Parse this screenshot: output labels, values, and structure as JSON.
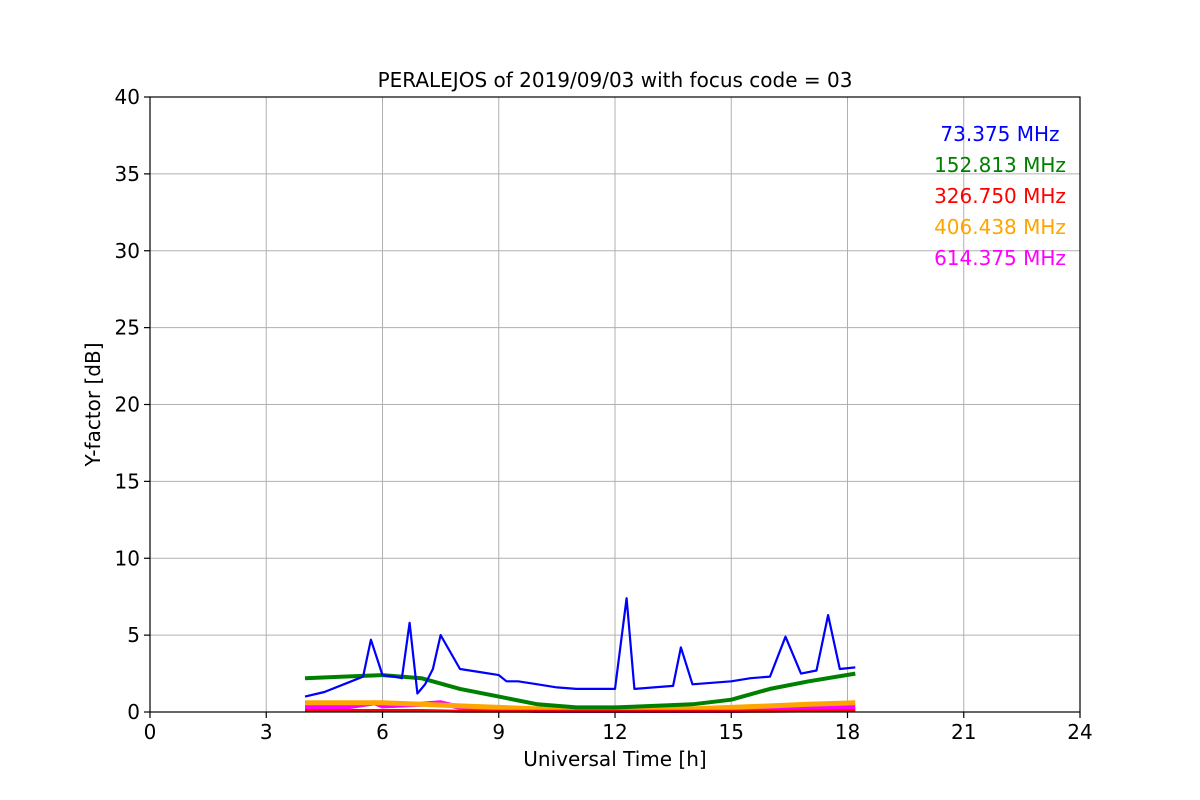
{
  "chart_data": {
    "type": "line",
    "title": "PERALEJOS of 2019/09/03 with focus code = 03",
    "xlabel": "Universal Time [h]",
    "ylabel": "Y-factor [dB]",
    "xlim": [
      0,
      24
    ],
    "ylim": [
      0,
      40
    ],
    "xticks": [
      0,
      3,
      6,
      9,
      12,
      15,
      18,
      21,
      24
    ],
    "yticks": [
      0,
      5,
      10,
      15,
      20,
      25,
      30,
      35,
      40
    ],
    "grid": true,
    "legend_placement": "top-right",
    "series": [
      {
        "name": "73.375 MHz",
        "color": "#0000ff",
        "x": [
          4.0,
          4.5,
          5.0,
          5.3,
          5.5,
          5.7,
          6.0,
          6.3,
          6.5,
          6.7,
          6.9,
          7.1,
          7.3,
          7.5,
          8.0,
          8.5,
          9.0,
          9.2,
          9.5,
          10.0,
          10.5,
          11.0,
          11.5,
          12.0,
          12.3,
          12.5,
          13.0,
          13.5,
          13.7,
          14.0,
          14.5,
          15.0,
          15.5,
          16.0,
          16.4,
          16.8,
          17.2,
          17.5,
          17.8,
          18.2
        ],
        "y": [
          1.0,
          1.3,
          1.8,
          2.1,
          2.3,
          4.7,
          2.4,
          2.3,
          2.2,
          5.8,
          1.2,
          1.8,
          2.8,
          5.0,
          2.8,
          2.6,
          2.4,
          2.0,
          2.0,
          1.8,
          1.6,
          1.5,
          1.5,
          1.5,
          7.4,
          1.5,
          1.6,
          1.7,
          4.2,
          1.8,
          1.9,
          2.0,
          2.2,
          2.3,
          4.9,
          2.5,
          2.7,
          6.3,
          2.8,
          2.9
        ]
      },
      {
        "name": "152.813 MHz",
        "color": "#008000",
        "x": [
          4.0,
          5.0,
          6.0,
          7.0,
          8.0,
          9.0,
          10.0,
          11.0,
          12.0,
          13.0,
          14.0,
          15.0,
          16.0,
          17.0,
          18.2
        ],
        "y": [
          2.2,
          2.3,
          2.4,
          2.2,
          1.5,
          1.0,
          0.5,
          0.3,
          0.3,
          0.4,
          0.5,
          0.8,
          1.5,
          2.0,
          2.5
        ]
      },
      {
        "name": "326.750 MHz",
        "color": "#ff0000",
        "x": [
          4.0,
          6.0,
          7.0,
          8.0,
          10.0,
          12.0,
          14.0,
          16.0,
          18.2
        ],
        "y": [
          0.1,
          0.1,
          0.1,
          0.05,
          0.05,
          0.05,
          0.05,
          0.05,
          0.1
        ]
      },
      {
        "name": "406.438 MHz",
        "color": "#ffa500",
        "x": [
          4.0,
          5.0,
          6.0,
          7.0,
          8.0,
          9.0,
          10.0,
          11.0,
          12.0,
          13.0,
          14.0,
          15.0,
          16.0,
          17.0,
          18.2
        ],
        "y": [
          0.6,
          0.6,
          0.6,
          0.5,
          0.4,
          0.3,
          0.2,
          0.2,
          0.2,
          0.2,
          0.2,
          0.3,
          0.4,
          0.5,
          0.6
        ]
      },
      {
        "name": "614.375 MHz",
        "color": "#ff00ff",
        "x": [
          4.0,
          5.0,
          5.8,
          6.0,
          7.0,
          7.5,
          8.0,
          9.0,
          10.0,
          11.0,
          12.0,
          13.0,
          14.0,
          15.0,
          16.0,
          17.0,
          18.2
        ],
        "y": [
          0.3,
          0.3,
          0.6,
          0.4,
          0.5,
          0.6,
          0.3,
          0.2,
          0.1,
          0.1,
          0.1,
          0.1,
          0.1,
          0.1,
          0.15,
          0.2,
          0.3
        ]
      }
    ]
  }
}
